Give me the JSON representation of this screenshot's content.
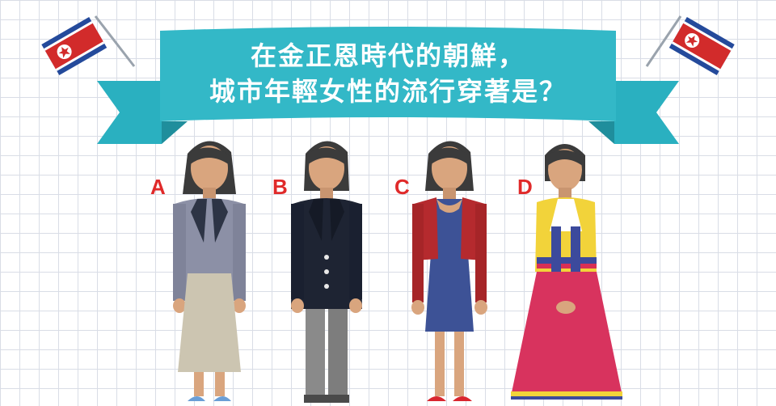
{
  "title": {
    "line1": "在金正恩時代的朝鮮，",
    "line2": "城市年輕女性的流行穿著是？"
  },
  "options": [
    {
      "label": "A",
      "figure": "woman-grey-blazer-beige-skirt"
    },
    {
      "label": "B",
      "figure": "woman-navy-blazer-grey-trousers"
    },
    {
      "label": "C",
      "figure": "woman-red-jacket-blue-dress"
    },
    {
      "label": "D",
      "figure": "woman-hanbok"
    }
  ],
  "flags": [
    "north-korea-flag-left",
    "north-korea-flag-right"
  ],
  "colors": {
    "ribbon": "#2fb3c3",
    "ribbon_dark": "#1f8e9c",
    "label_red": "#e02a2a",
    "grid": "#d9dde6",
    "flag_blue": "#244a9b",
    "flag_red": "#d22b2b"
  }
}
